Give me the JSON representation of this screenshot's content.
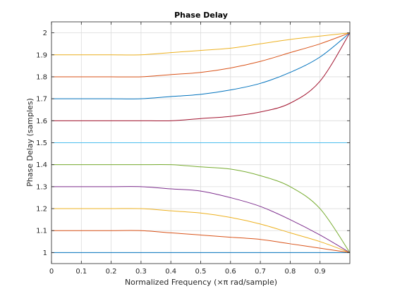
{
  "chart_data": {
    "type": "line",
    "title": "Phase Delay",
    "xlabel": "Normalized Frequency (×π rad/sample)",
    "ylabel": "Phase Delay (samples)",
    "xlim": [
      0,
      1
    ],
    "ylim": [
      0.95,
      2.05
    ],
    "xticks": [
      0,
      0.1,
      0.2,
      0.3,
      0.4,
      0.5,
      0.6,
      0.7,
      0.8,
      0.9
    ],
    "xtick_labels": [
      "0",
      "0.1",
      "0.2",
      "0.3",
      "0.4",
      "0.5",
      "0.6",
      "0.7",
      "0.8",
      "0.9"
    ],
    "yticks": [
      1,
      1.1,
      1.2,
      1.3,
      1.4,
      1.5,
      1.6,
      1.7,
      1.8,
      1.9,
      2
    ],
    "ytick_labels": [
      "1",
      "1.1",
      "1.2",
      "1.3",
      "1.4",
      "1.5",
      "1.6",
      "1.7",
      "1.8",
      "1.9",
      "2"
    ],
    "grid": true,
    "box": true,
    "x": [
      0,
      0.1,
      0.2,
      0.3,
      0.4,
      0.5,
      0.6,
      0.7,
      0.8,
      0.9,
      1.0
    ],
    "series": [
      {
        "color": "#0072BD",
        "values": [
          1.0,
          1.0,
          1.0,
          1.0,
          1.0,
          1.0,
          1.0,
          1.0,
          1.0,
          1.0,
          1.0
        ]
      },
      {
        "color": "#D95319",
        "values": [
          1.1,
          1.1,
          1.1,
          1.1,
          1.09,
          1.08,
          1.07,
          1.06,
          1.04,
          1.02,
          1.0
        ]
      },
      {
        "color": "#EDB120",
        "values": [
          1.2,
          1.2,
          1.2,
          1.2,
          1.19,
          1.18,
          1.16,
          1.13,
          1.09,
          1.05,
          1.0
        ]
      },
      {
        "color": "#7E2F8E",
        "values": [
          1.3,
          1.3,
          1.3,
          1.3,
          1.29,
          1.28,
          1.25,
          1.21,
          1.15,
          1.08,
          1.0
        ]
      },
      {
        "color": "#77AC30",
        "values": [
          1.4,
          1.4,
          1.4,
          1.4,
          1.4,
          1.39,
          1.38,
          1.35,
          1.3,
          1.2,
          1.0
        ]
      },
      {
        "color": "#4DBEEE",
        "values": [
          1.5,
          1.5,
          1.5,
          1.5,
          1.5,
          1.5,
          1.5,
          1.5,
          1.5,
          1.5,
          1.5
        ]
      },
      {
        "color": "#A2142F",
        "values": [
          1.6,
          1.6,
          1.6,
          1.6,
          1.6,
          1.61,
          1.62,
          1.64,
          1.68,
          1.78,
          2.0
        ]
      },
      {
        "color": "#0072BD",
        "values": [
          1.7,
          1.7,
          1.7,
          1.7,
          1.71,
          1.72,
          1.74,
          1.77,
          1.82,
          1.89,
          2.0
        ]
      },
      {
        "color": "#D95319",
        "values": [
          1.8,
          1.8,
          1.8,
          1.8,
          1.81,
          1.82,
          1.84,
          1.87,
          1.91,
          1.95,
          2.0
        ]
      },
      {
        "color": "#EDB120",
        "values": [
          1.9,
          1.9,
          1.9,
          1.9,
          1.91,
          1.92,
          1.93,
          1.95,
          1.97,
          1.985,
          2.0
        ]
      }
    ]
  }
}
